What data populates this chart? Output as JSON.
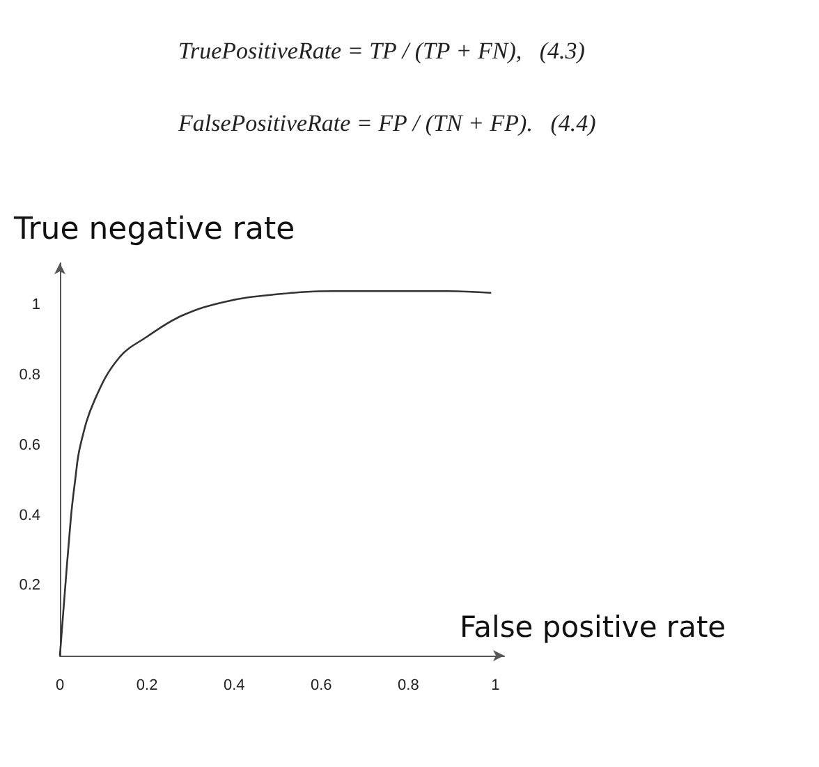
{
  "chart_data": {
    "type": "line",
    "xlabel": "False positive rate",
    "ylabel": "True negative rate",
    "annotations": [
      "TruePositiveRate = TP / (TP + FN),   (4.3)",
      "FalsePositiveRate = FP / (TN + FP).   (4.4)"
    ],
    "x": [
      0,
      0.025,
      0.035,
      0.047,
      0.08,
      0.136,
      0.2,
      0.28,
      0.38,
      0.49,
      0.63,
      0.78,
      0.89,
      0.99
    ],
    "series": [
      {
        "color": "#333333",
        "values": [
          0,
          0.39,
          0.5,
          0.6,
          0.73,
          0.85,
          0.91,
          0.97,
          1.01,
          1.03,
          1.04,
          1.04,
          1.04,
          1.035
        ]
      }
    ],
    "xlim": [
      0,
      1.02
    ],
    "ylim": [
      0,
      1.12
    ],
    "xticks": [
      0,
      0.2,
      0.4,
      0.6,
      0.8,
      1
    ],
    "yticks": [
      0.2,
      0.4,
      0.6,
      0.8,
      1
    ],
    "grid": false,
    "marker": "none",
    "line_style": "solid"
  }
}
